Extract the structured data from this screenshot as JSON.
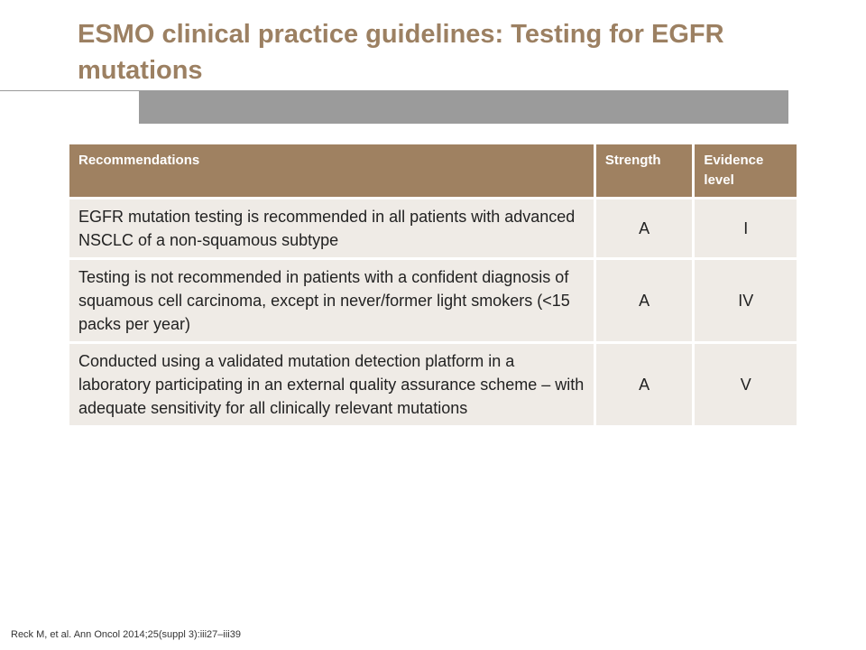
{
  "slide": {
    "title": "ESMO clinical practice guidelines: Testing for EGFR mutations",
    "citation": "Reck M, et al. Ann Oncol 2014;25(suppl 3):iii27–iii39"
  },
  "table": {
    "headers": {
      "recommendations": "Recommendations",
      "strength": "Strength",
      "evidence": "Evidence level"
    },
    "rows": [
      {
        "recommendation": "EGFR mutation testing is recommended in all patients with advanced NSCLC of a non-squamous subtype",
        "strength": "A",
        "evidence": "I"
      },
      {
        "recommendation": "Testing is not recommended in patients with a confident diagnosis of squamous cell carcinoma, except in never/former light smokers (<15 packs per year)",
        "strength": "A",
        "evidence": "IV"
      },
      {
        "recommendation": "Conducted using a validated mutation detection platform in a laboratory participating in an external quality assurance scheme – with adequate sensitivity for all clinically relevant mutations",
        "strength": "A",
        "evidence": "V"
      }
    ]
  },
  "colors": {
    "title": "#9c8062",
    "header_bg": "#9f8161",
    "cell_bg": "#efebe6",
    "bar": "#9b9b9b"
  }
}
